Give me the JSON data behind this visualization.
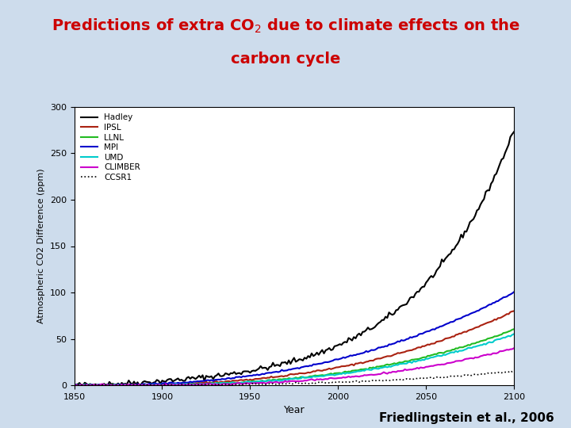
{
  "title_line1": "Predictions of extra CO$_2$ due to climate effects on the",
  "title_line2": "carbon cycle",
  "title_color": "#cc0000",
  "background_color": "#cddcec",
  "plot_bg_color": "#ffffff",
  "xlabel": "Year",
  "ylabel": "Atmospheric CO2 Difference (ppm)",
  "xlim": [
    1850,
    2100
  ],
  "ylim": [
    0,
    300
  ],
  "yticks": [
    0,
    50,
    100,
    150,
    200,
    250,
    300
  ],
  "xticks": [
    1850,
    1900,
    1950,
    2000,
    2050,
    2100
  ],
  "attribution": "Friedlingstein et al., 2006",
  "series": [
    {
      "name": "Hadley",
      "color": "#000000",
      "lw": 1.5,
      "ls": "solid",
      "final_val": 275,
      "power": 4.5
    },
    {
      "name": "IPSL",
      "color": "#aa2211",
      "lw": 1.5,
      "ls": "solid",
      "final_val": 80,
      "power": 2.8
    },
    {
      "name": "LLNL",
      "color": "#22bb22",
      "lw": 1.5,
      "ls": "solid",
      "final_val": 60,
      "power": 3.0
    },
    {
      "name": "MPI",
      "color": "#0000cc",
      "lw": 1.5,
      "ls": "solid",
      "final_val": 100,
      "power": 2.5
    },
    {
      "name": "UMD",
      "color": "#00cccc",
      "lw": 1.5,
      "ls": "solid",
      "final_val": 55,
      "power": 3.0
    },
    {
      "name": "CLIMBER",
      "color": "#cc00cc",
      "lw": 1.5,
      "ls": "solid",
      "final_val": 40,
      "power": 3.2
    },
    {
      "name": "CCSR1",
      "color": "#000000",
      "lw": 1.2,
      "ls": "dotted",
      "final_val": 15,
      "power": 3.0
    }
  ]
}
